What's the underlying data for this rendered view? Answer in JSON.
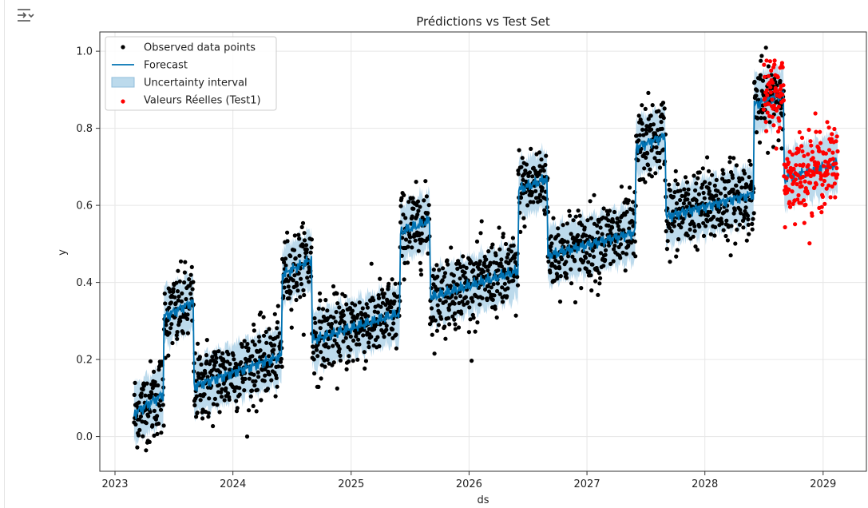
{
  "cell": {
    "output_icon": "collapse-output-icon"
  },
  "chart_data": {
    "type": "scatter",
    "title": "Prédictions vs Test Set",
    "xlabel": "ds",
    "ylabel": "y",
    "xlim": [
      "2022-11-15",
      "2029-05-15"
    ],
    "ylim": [
      -0.09,
      1.05
    ],
    "x_ticks": [
      "2023",
      "2024",
      "2025",
      "2026",
      "2027",
      "2028",
      "2029"
    ],
    "y_ticks": [
      "0.0",
      "0.2",
      "0.4",
      "0.6",
      "0.8",
      "1.0"
    ],
    "grid": true,
    "legend": {
      "position": "top-left",
      "entries": [
        "Observed data points",
        "Forecast",
        "Uncertainty interval",
        "Valeurs Réelles (Test1)"
      ]
    },
    "colors": {
      "observed": "#000000",
      "forecast": "#0072b2",
      "interval": "#a6cde6",
      "test": "#ff0000"
    },
    "regime_segments": [
      {
        "start": "2023-03-01",
        "end": "2023-06-01",
        "start_level": 0.06,
        "end_level": 0.11
      },
      {
        "start": "2023-06-01",
        "end": "2023-09-01",
        "start_level": 0.31,
        "end_level": 0.35
      },
      {
        "start": "2023-09-01",
        "end": "2024-06-01",
        "start_level": 0.13,
        "end_level": 0.21
      },
      {
        "start": "2024-06-01",
        "end": "2024-09-01",
        "start_level": 0.42,
        "end_level": 0.46
      },
      {
        "start": "2024-09-01",
        "end": "2025-06-01",
        "start_level": 0.25,
        "end_level": 0.32
      },
      {
        "start": "2025-06-01",
        "end": "2025-09-01",
        "start_level": 0.53,
        "end_level": 0.56
      },
      {
        "start": "2025-09-01",
        "end": "2026-06-01",
        "start_level": 0.36,
        "end_level": 0.43
      },
      {
        "start": "2026-06-01",
        "end": "2026-09-01",
        "start_level": 0.64,
        "end_level": 0.67
      },
      {
        "start": "2026-09-01",
        "end": "2027-06-01",
        "start_level": 0.47,
        "end_level": 0.53
      },
      {
        "start": "2027-06-01",
        "end": "2027-09-01",
        "start_level": 0.75,
        "end_level": 0.78
      },
      {
        "start": "2027-09-01",
        "end": "2028-06-01",
        "start_level": 0.57,
        "end_level": 0.63
      },
      {
        "start": "2028-06-01",
        "end": "2028-09-01",
        "start_level": 0.86,
        "end_level": 0.89
      },
      {
        "start": "2028-09-01",
        "end": "2029-02-15",
        "start_level": 0.67,
        "end_level": 0.71
      }
    ],
    "uncertainty_halfwidth": 0.075,
    "observed_spread": 0.05,
    "observed_range": [
      "2023-03-01",
      "2028-09-01"
    ],
    "test_range": [
      "2028-07-01",
      "2029-02-15"
    ]
  }
}
